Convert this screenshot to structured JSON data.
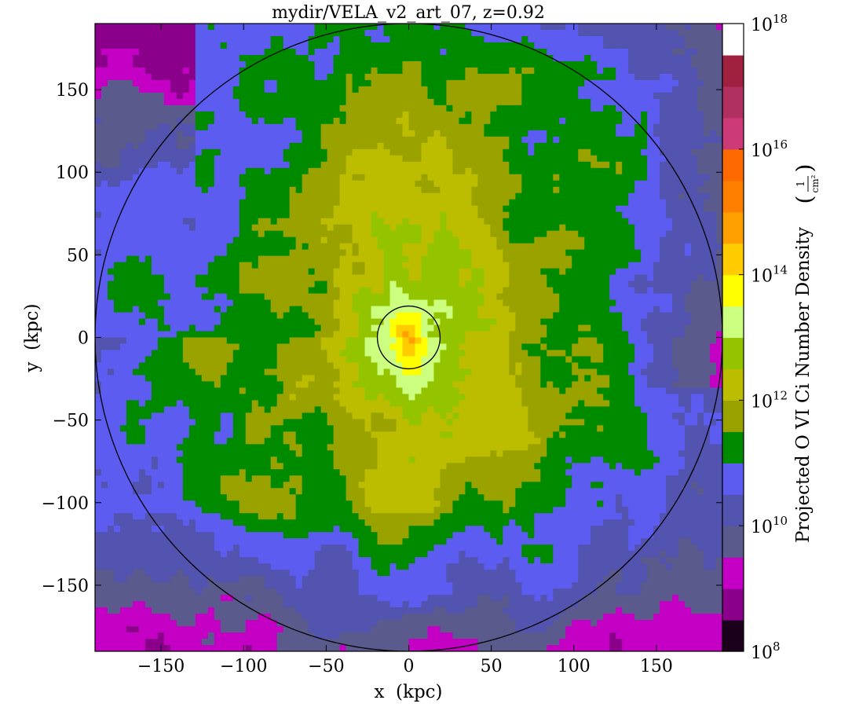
{
  "chart_data": {
    "type": "heatmap",
    "title": "mydir/VELA_v2_art_07, z=0.92",
    "xlabel": "x  (kpc)",
    "ylabel": "y  (kpc)",
    "xlim": [
      -190,
      190
    ],
    "ylim": [
      -190,
      190
    ],
    "xticks": [
      -150,
      -100,
      -50,
      0,
      50,
      100,
      150
    ],
    "yticks": [
      -150,
      -100,
      -50,
      0,
      50,
      100,
      150
    ],
    "xtick_labels": [
      "−150",
      "−100",
      "−50",
      "0",
      "50",
      "100",
      "150"
    ],
    "ytick_labels": [
      "−150",
      "−100",
      "−50",
      "0",
      "50",
      "100",
      "150"
    ],
    "colorbar": {
      "label": "Projected O VI Ci Number Density",
      "unit_numerator": "1",
      "unit_denominator": "cm²",
      "scale": "log",
      "range": [
        100000000.0,
        1e+18
      ],
      "tick_exponents": [
        8,
        10,
        12,
        14,
        16,
        18
      ],
      "tick_base": "10",
      "levels_log10": [
        8.0,
        8.5,
        9.0,
        9.5,
        10.0,
        10.5,
        11.0,
        11.5,
        12.0,
        12.5,
        13.0,
        13.5,
        14.0,
        14.5,
        15.0,
        15.5,
        16.0,
        16.5,
        17.0,
        17.5,
        18.0
      ],
      "colors": [
        "#1a001a",
        "#8b008b",
        "#c400c4",
        "#5a5a8c",
        "#5353b0",
        "#5c5cf0",
        "#008a00",
        "#9aa200",
        "#bcbc00",
        "#94c400",
        "#ccff80",
        "#ffff00",
        "#ffcc00",
        "#ffa000",
        "#ff8000",
        "#ff6a00",
        "#cc3a78",
        "#b03060",
        "#a02040",
        "#ffffff"
      ]
    },
    "circles": [
      {
        "center": [
          0,
          0
        ],
        "radius_kpc": 190
      },
      {
        "center": [
          0,
          0
        ],
        "radius_kpc": 19
      }
    ]
  }
}
